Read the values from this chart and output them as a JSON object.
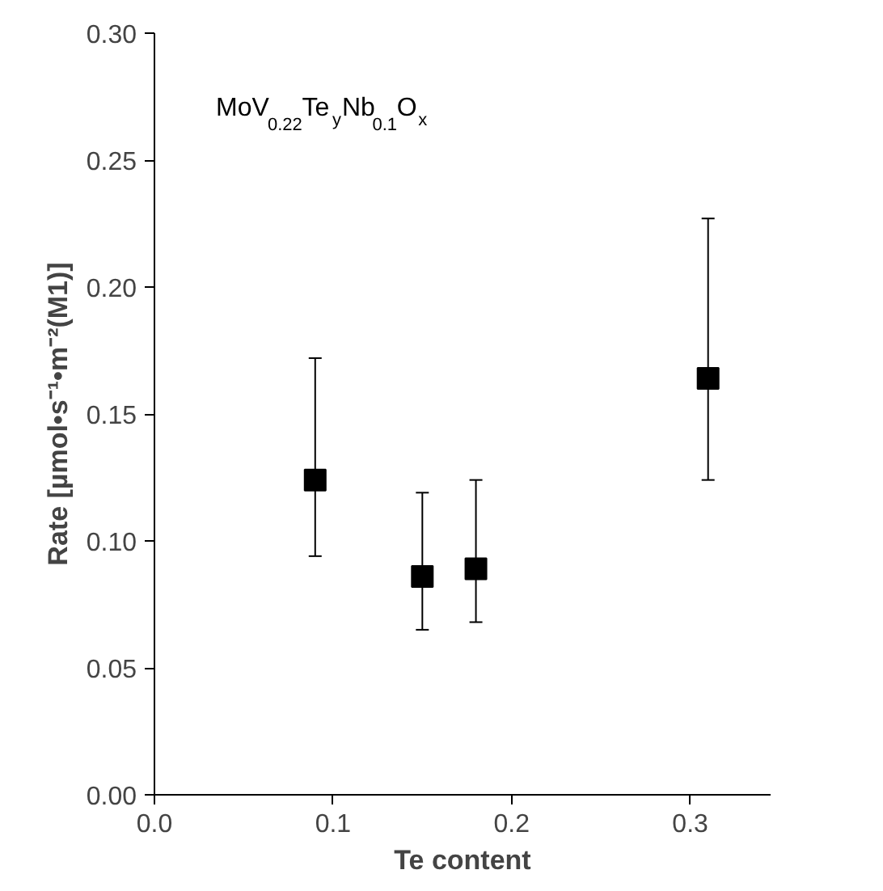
{
  "chart_data": {
    "type": "scatter",
    "xlabel": "Te content",
    "ylabel": "Rate [µmol•s⁻¹•m⁻²(M1)]",
    "annotations": [
      "MoV$_{0.22}$Te$_{y}$Nb$_{0.1}$O$_{x}$"
    ],
    "x": [
      0.09,
      0.15,
      0.18,
      0.31
    ],
    "series": [
      {
        "color": "#000000",
        "values": [
          0.124,
          0.086,
          0.089,
          0.164
        ],
        "errors": [
          [
            0.094,
            0.172
          ],
          [
            0.065,
            0.119
          ],
          [
            0.068,
            0.124
          ],
          [
            0.124,
            0.227
          ]
        ]
      }
    ],
    "marker": "square",
    "grid": false,
    "xlim": [
      0.0,
      0.345
    ],
    "ylim": [
      0.0,
      0.3
    ],
    "xticks": [
      {
        "value": 0.0,
        "label": "0.0"
      },
      {
        "value": 0.1,
        "label": "0.1"
      },
      {
        "value": 0.2,
        "label": "0.2"
      },
      {
        "value": 0.3,
        "label": "0.3"
      }
    ],
    "yticks": [
      {
        "value": 0.0,
        "label": "0.00"
      },
      {
        "value": 0.05,
        "label": "0.05"
      },
      {
        "value": 0.1,
        "label": "0.10"
      },
      {
        "value": 0.15,
        "label": "0.15"
      },
      {
        "value": 0.2,
        "label": "0.20"
      },
      {
        "value": 0.25,
        "label": "0.25"
      },
      {
        "value": 0.3,
        "label": "0.30"
      }
    ]
  }
}
